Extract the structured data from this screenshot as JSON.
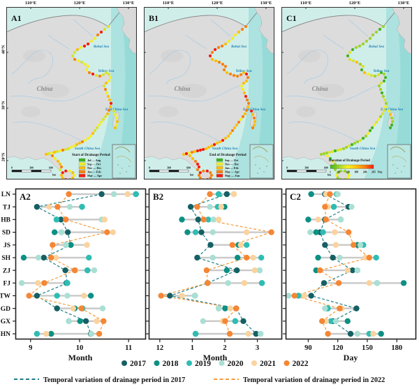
{
  "maps": {
    "axis_top": [
      "110°E",
      "120°E",
      "130°E"
    ],
    "axis_left": [
      "40°N",
      "30°N",
      "20°N"
    ],
    "country_label": "China",
    "sea_labels": {
      "bohai": "Bohai Sea",
      "yellow": "Yellow Sea",
      "east": "East China Sea",
      "south": "South China Sea"
    },
    "scalebar": {
      "labels": [
        "0",
        "300",
        "600"
      ],
      "unit": "km"
    },
    "panels": [
      {
        "id": "A1",
        "legend_title": "Start of Drainage Period",
        "legend_type": "classes",
        "legend_items": [
          {
            "label": "Jul — Aug",
            "color": "#3cb51e"
          },
          {
            "label": "Sep — Oct",
            "color": "#f5f021"
          },
          {
            "label": "Nov — Dec",
            "color": "#fbbe08"
          },
          {
            "label": "Jan — Feb",
            "color": "#f88010"
          },
          {
            "label": "Mar — Apr",
            "color": "#f81b0e"
          }
        ],
        "dot_palette": [
          "#d8e42c",
          "#f5f021",
          "#fbbe08",
          "#f88010",
          "#f81b0e"
        ],
        "dot_weights": [
          0.27,
          0.3,
          0.27,
          0.12,
          0.04
        ],
        "seed": 7
      },
      {
        "id": "B1",
        "legend_title": "End of Drainage Period",
        "legend_type": "classes",
        "legend_items": [
          {
            "label": "Sep — Oct",
            "color": "#3cb51e"
          },
          {
            "label": "Nov — Dec",
            "color": "#f5f021"
          },
          {
            "label": "Jan — Feb",
            "color": "#fbbe08"
          },
          {
            "label": "Mar — Apr",
            "color": "#f88010"
          },
          {
            "label": "May — Jun",
            "color": "#f81b0e"
          }
        ],
        "dot_palette": [
          "#f5f021",
          "#fbbe08",
          "#f88010",
          "#f81b0e"
        ],
        "dot_weights": [
          0.07,
          0.25,
          0.41,
          0.27
        ],
        "seed": 13
      },
      {
        "id": "C1",
        "legend_title": "Duration of Drainage Period",
        "legend_type": "gradient",
        "gradient_colors": [
          "#3cb51e",
          "#9ed32a",
          "#f5f021",
          "#fbbe08",
          "#f88010",
          "#f81b0e"
        ],
        "gradient_ticks": [
          "1",
          "60",
          "120",
          "180",
          "240",
          "265"
        ],
        "gradient_unit": "Day",
        "dot_palette": [
          "#3cb51e",
          "#9ed32a",
          "#d8e42c",
          "#f5f021",
          "#fbbe08",
          "#f88010"
        ],
        "dot_weights": [
          0.18,
          0.34,
          0.26,
          0.14,
          0.06,
          0.02
        ],
        "seed": 29
      }
    ]
  },
  "chart_data": [
    {
      "id": "A2",
      "type": "scatter",
      "xlabel": "Month",
      "xlim": [
        8.69,
        11.34
      ],
      "x_ticks": [
        9,
        10,
        11
      ],
      "x_tick_labels": [
        "9",
        "10",
        "11"
      ],
      "categories": [
        "LN",
        "TJ",
        "HB",
        "SD",
        "JS",
        "SH",
        "ZJ",
        "FJ",
        "TW",
        "GD",
        "GX",
        "HN"
      ],
      "series": [
        {
          "name": "2017",
          "values": [
            10.45,
            9.13,
            9.62,
            9.76,
            9.82,
            9.27,
            9.71,
            9.75,
            9.13,
            9.54,
            10.13,
            10.23
          ]
        },
        {
          "name": "2018",
          "values": [
            11.15,
            10.05,
            9.53,
            9.49,
            9.82,
            8.86,
            10.16,
            9.73,
            10.23,
            9.9,
            10.01,
            9.42
          ]
        },
        {
          "name": "2019",
          "values": [
            11.15,
            10.05,
            9.53,
            9.63,
            9.72,
            10.19,
            10.16,
            9.75,
            9.54,
            10.06,
            9.78,
            9.13
          ]
        },
        {
          "name": "2020",
          "values": [
            10.7,
            9.8,
            10.45,
            9.63,
            9.72,
            9.16,
            10.3,
            8.82,
            9.75,
            10.47,
            9.78,
            10.24
          ]
        },
        {
          "name": "2021",
          "values": [
            10.98,
            9.38,
            10.51,
            10.68,
            10.15,
            9.52,
            9.92,
            9.15,
            10.09,
            9.87,
            10.35,
            9.32
          ]
        },
        {
          "name": "2022",
          "values": [
            9.78,
            9.55,
            9.72,
            10.56,
            9.45,
            9.42,
            9.9,
            9.28,
            8.97,
            10.04,
            10.49,
            10.4
          ]
        }
      ]
    },
    {
      "id": "B2",
      "type": "scatter",
      "xlabel": "Month",
      "xlim": [
        -0.34,
        3.74
      ],
      "x_ticks": [
        0,
        1,
        2,
        3
      ],
      "x_tick_labels": [
        "12",
        "1",
        "2",
        "3"
      ],
      "categories": [
        "LN",
        "TJ",
        "HB",
        "SD",
        "JS",
        "SH",
        "ZJ",
        "FJ",
        "TW",
        "GD",
        "GX",
        "HN"
      ],
      "series": [
        {
          "name": "2017",
          "values": [
            2.06,
            0.95,
            1.18,
            1.28,
            1.56,
            1.15,
            2.37,
            1.47,
            0.31,
            2.35,
            2.57,
            2.96
          ]
        },
        {
          "name": "2018",
          "values": [
            1.81,
            1.99,
            0.68,
            0.85,
            2.42,
            2.39,
            2.06,
            3.14,
            1.08,
            2.01,
            2.32,
            1.1
          ]
        },
        {
          "name": "2019",
          "values": [
            1.81,
            1.78,
            1.49,
            1.1,
            2.67,
            3.12,
            3.07,
            3.14,
            1.08,
            1.81,
            2.32,
            1.1
          ]
        },
        {
          "name": "2020",
          "values": [
            2.28,
            1.54,
            1.65,
            1.63,
            2.49,
            1.63,
            3.07,
            2.1,
            1.08,
            1.81,
            1.33,
            3.1
          ]
        },
        {
          "name": "2021",
          "values": [
            2.28,
            1.89,
            1.81,
            2.67,
            2.49,
            2.87,
            2.92,
            2.6,
            0.68,
            2.17,
            1.94,
            2.72
          ]
        },
        {
          "name": "2022",
          "values": [
            1.54,
            1.15,
            1.35,
            3.43,
            2.23,
            2.67,
            1.44,
            1.47,
            0.04,
            2.35,
            2.01,
            2.15
          ]
        }
      ]
    },
    {
      "id": "C2",
      "type": "scatter",
      "xlabel": "Day",
      "xlim": [
        67,
        199
      ],
      "x_ticks": [
        90,
        120,
        150,
        180
      ],
      "x_tick_labels": [
        "90",
        "120",
        "150",
        "180"
      ],
      "categories": [
        "LN",
        "TJ",
        "HB",
        "SD",
        "JS",
        "SH",
        "ZJ",
        "FJ",
        "TW",
        "GD",
        "GX",
        "HN"
      ],
      "series": [
        {
          "name": "2017",
          "values": [
            107,
            131,
            107,
            102,
            107,
            115,
            135,
            106,
            93,
            139,
            115,
            133
          ]
        },
        {
          "name": "2018",
          "values": [
            93,
            116,
            90,
            98,
            140,
            100,
            98,
            187,
            80,
            109,
            130,
            164
          ]
        },
        {
          "name": "2019",
          "values": [
            119,
            116,
            123,
            105,
            146,
            159,
            140,
            160,
            80,
            110,
            113,
            152
          ]
        },
        {
          "name": "2020",
          "values": [
            120,
            134,
            123,
            92,
            143,
            122,
            140,
            160,
            70,
            107,
            118,
            140
          ]
        },
        {
          "name": "2021",
          "values": [
            108,
            110,
            100,
            117,
            118,
            148,
            130,
            152,
            86,
            124,
            108,
            156
          ]
        },
        {
          "name": "2022",
          "values": [
            112,
            107,
            108,
            131,
            136,
            152,
            102,
            121,
            76,
            122,
            104,
            110
          ]
        }
      ]
    }
  ],
  "legend": {
    "years": [
      {
        "label": "2017",
        "color": "#156064"
      },
      {
        "label": "2018",
        "color": "#0c9083"
      },
      {
        "label": "2019",
        "color": "#2fbdb3"
      },
      {
        "label": "2020",
        "color": "#aadfd4"
      },
      {
        "label": "2021",
        "color": "#fbd39e"
      },
      {
        "label": "2022",
        "color": "#f58634"
      }
    ],
    "lines": [
      {
        "label": "Temporal variation of drainage period in 2017",
        "color": "#1b7f86"
      },
      {
        "label": "Temporal variation of drainage period in 2022",
        "color": "#f59a3c"
      }
    ]
  }
}
